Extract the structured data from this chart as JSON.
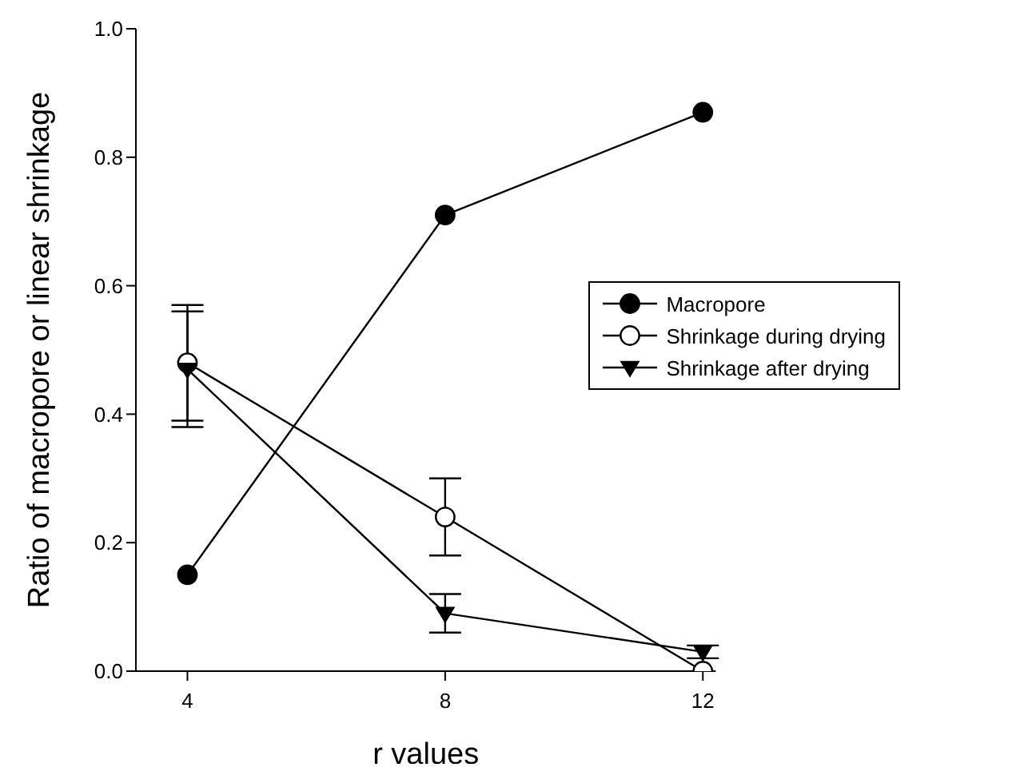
{
  "chart_data": {
    "type": "line",
    "xlabel": "r values",
    "ylabel": "Ratio of macropore or linear shrinkage",
    "x": [
      4,
      8,
      12
    ],
    "series": [
      {
        "name": "Macropore",
        "color": "#000000",
        "marker": "circle",
        "values": [
          0.15,
          0.71,
          0.87
        ]
      },
      {
        "name": "Shrinkage during drying",
        "color": "#000000",
        "marker": "circle",
        "colors": [
          "#ffffff",
          "#ffffff",
          "#ffffff"
        ],
        "values": [
          0.48,
          0.24,
          0.0
        ],
        "errors": [
          0.09,
          0.06,
          null
        ]
      },
      {
        "name": "Shrinkage after drying",
        "color": "#000000",
        "marker": "triangle",
        "values": [
          0.47,
          0.09,
          0.03
        ],
        "errors": [
          0.09,
          0.03,
          0.01
        ]
      }
    ],
    "xlim": [
      3.2,
      12.2
    ],
    "xticks": [
      4,
      8,
      12
    ],
    "ylim": [
      0,
      1
    ],
    "yticks": [
      {
        "value": 0,
        "label": "0.0"
      },
      {
        "value": 0.2,
        "label": "0.2"
      },
      {
        "value": 0.4,
        "label": "0.4"
      },
      {
        "value": 0.6,
        "label": "0.6"
      },
      {
        "value": 0.8,
        "label": "0.8"
      },
      {
        "value": 1,
        "label": "1.0"
      }
    ],
    "grid": false,
    "legend": "right",
    "line_style": "solid"
  }
}
